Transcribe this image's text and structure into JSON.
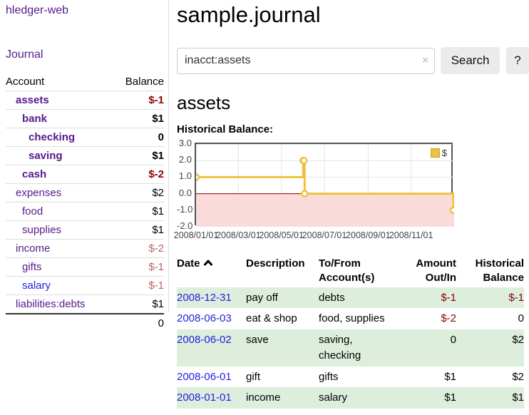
{
  "app": {
    "brand": "hledger-web",
    "nav_journal": "Journal"
  },
  "colors": {
    "link_purple": "#551a8b",
    "link_blue": "#2222dd",
    "negative_strong": "#8b0000",
    "negative_soft": "#b36464",
    "row_stripe_green": "#ddeedd",
    "chart_line_gold": "#edc240",
    "chart_negative_fill": "#fbdada",
    "chart_zero_line": "#8b0000",
    "chart_grid": "#e6e6e6",
    "chart_border": "#545454"
  },
  "sidebar": {
    "header": {
      "account": "Account",
      "balance": "Balance"
    },
    "rows": [
      {
        "name": "assets",
        "balance": "$-1",
        "level": 1,
        "bold": true,
        "balance_tone": "neg_strong",
        "link_tone": "purple"
      },
      {
        "name": "bank",
        "balance": "$1",
        "level": 2,
        "bold": true,
        "balance_tone": "normal",
        "link_tone": "purple"
      },
      {
        "name": "checking",
        "balance": "0",
        "level": 3,
        "bold": true,
        "balance_tone": "normal",
        "link_tone": "purple"
      },
      {
        "name": "saving",
        "balance": "$1",
        "level": 3,
        "bold": true,
        "balance_tone": "normal",
        "link_tone": "purple"
      },
      {
        "name": "cash",
        "balance": "$-2",
        "level": 2,
        "bold": true,
        "balance_tone": "neg_strong",
        "link_tone": "purple"
      },
      {
        "name": "expenses",
        "balance": "$2",
        "level": 1,
        "bold": false,
        "balance_tone": "normal",
        "link_tone": "purple"
      },
      {
        "name": "food",
        "balance": "$1",
        "level": 2,
        "bold": false,
        "balance_tone": "normal",
        "link_tone": "purple"
      },
      {
        "name": "supplies",
        "balance": "$1",
        "level": 2,
        "bold": false,
        "balance_tone": "normal",
        "link_tone": "purple"
      },
      {
        "name": "income",
        "balance": "$-2",
        "level": 1,
        "bold": false,
        "balance_tone": "neg_soft",
        "link_tone": "purple"
      },
      {
        "name": "gifts",
        "balance": "$-1",
        "level": 2,
        "bold": false,
        "balance_tone": "neg_soft",
        "link_tone": "purple"
      },
      {
        "name": "salary",
        "balance": "$-1",
        "level": 2,
        "bold": false,
        "balance_tone": "neg_soft",
        "link_tone": "blue"
      },
      {
        "name": "liabilities:debts",
        "balance": "$1",
        "level": 1,
        "bold": false,
        "balance_tone": "normal",
        "link_tone": "purple"
      }
    ],
    "total": "0"
  },
  "header": {
    "title": "sample.journal"
  },
  "search": {
    "value": "inacct:assets",
    "clear_icon": "×",
    "button_label": "Search",
    "help_label": "?"
  },
  "account_page": {
    "heading": "assets",
    "subheading": "Historical Balance:"
  },
  "chart_data": {
    "type": "line",
    "step": true,
    "series": [
      {
        "name": "$",
        "x": [
          "2008-01-01",
          "2008-06-01",
          "2008-06-02",
          "2008-06-03",
          "2008-12-31"
        ],
        "y": [
          1,
          2,
          2,
          0,
          -1
        ]
      }
    ],
    "x_domain": [
      "2008-01-01",
      "2009-01-01"
    ],
    "ylim": [
      -2,
      3
    ],
    "yticks": [
      3.0,
      2.0,
      1.0,
      0.0,
      -1.0,
      -2.0
    ],
    "xticks": [
      {
        "label": "2008/01/01",
        "date": "2008-01-01"
      },
      {
        "label": "2008/03/01",
        "date": "2008-03-01"
      },
      {
        "label": "2008/05/01",
        "date": "2008-05-01"
      },
      {
        "label": "2008/07/01",
        "date": "2008-07-01"
      },
      {
        "label": "2008/09/01",
        "date": "2008-09-01"
      },
      {
        "label": "2008/11/01",
        "date": "2008-11-01"
      }
    ],
    "grid": true,
    "legend_position": "top-right",
    "negative_region_shaded": true
  },
  "register": {
    "columns": [
      "Date",
      "Description",
      "To/From Account(s)",
      "Amount Out/In",
      "Historical Balance"
    ],
    "sort": {
      "column": "Date",
      "direction": "ascending"
    },
    "rows": [
      {
        "date": "2008-12-31",
        "description": "pay off",
        "accounts": "debts",
        "amount": "$-1",
        "amount_negative": true,
        "balance": "$-1",
        "balance_negative": true,
        "shaded": true
      },
      {
        "date": "2008-06-03",
        "description": "eat & shop",
        "accounts": "food, supplies",
        "amount": "$-2",
        "amount_negative": true,
        "balance": "0",
        "balance_negative": false,
        "shaded": false
      },
      {
        "date": "2008-06-02",
        "description": "save",
        "accounts": "saving, checking",
        "amount": "0",
        "amount_negative": false,
        "balance": "$2",
        "balance_negative": false,
        "shaded": true
      },
      {
        "date": "2008-06-01",
        "description": "gift",
        "accounts": "gifts",
        "amount": "$1",
        "amount_negative": false,
        "balance": "$2",
        "balance_negative": false,
        "shaded": false
      },
      {
        "date": "2008-01-01",
        "description": "income",
        "accounts": "salary",
        "amount": "$1",
        "amount_negative": false,
        "balance": "$1",
        "balance_negative": false,
        "shaded": true
      }
    ]
  }
}
